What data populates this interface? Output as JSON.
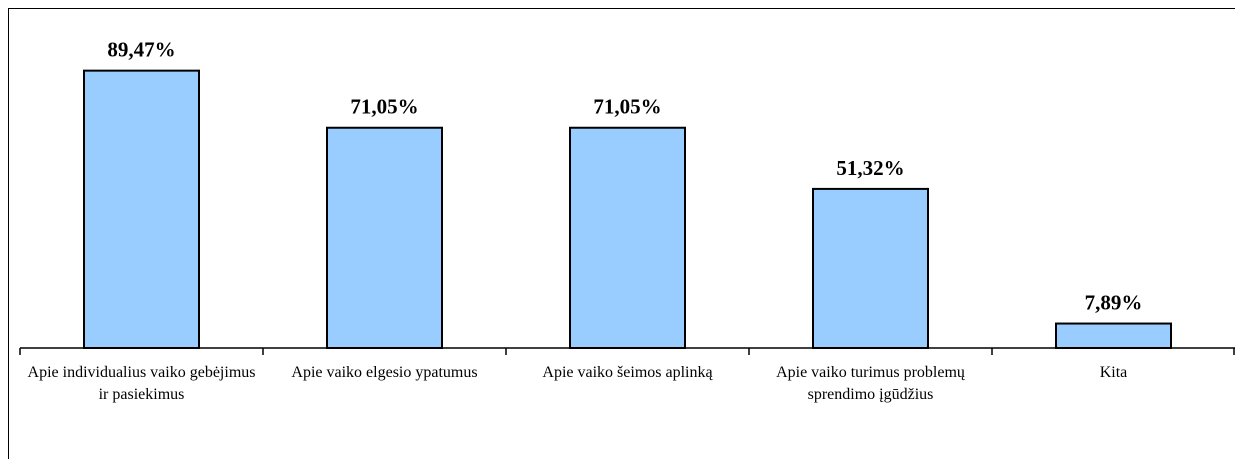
{
  "chart_data": {
    "type": "bar",
    "categories": [
      "Apie individualius vaiko gebėjimus ir pasiekimus",
      "Apie vaiko elgesio ypatumus",
      "Apie vaiko šeimos aplinką",
      "Apie vaiko turimus problemų sprendimo įgūdžius",
      "Kita"
    ],
    "values": [
      89.47,
      71.05,
      71.05,
      51.32,
      7.89
    ],
    "value_labels": [
      "89,47%",
      "71,05%",
      "71,05%",
      "51,32%",
      "7,89%"
    ],
    "color": "#99ccff",
    "ylim": [
      0,
      100
    ]
  }
}
